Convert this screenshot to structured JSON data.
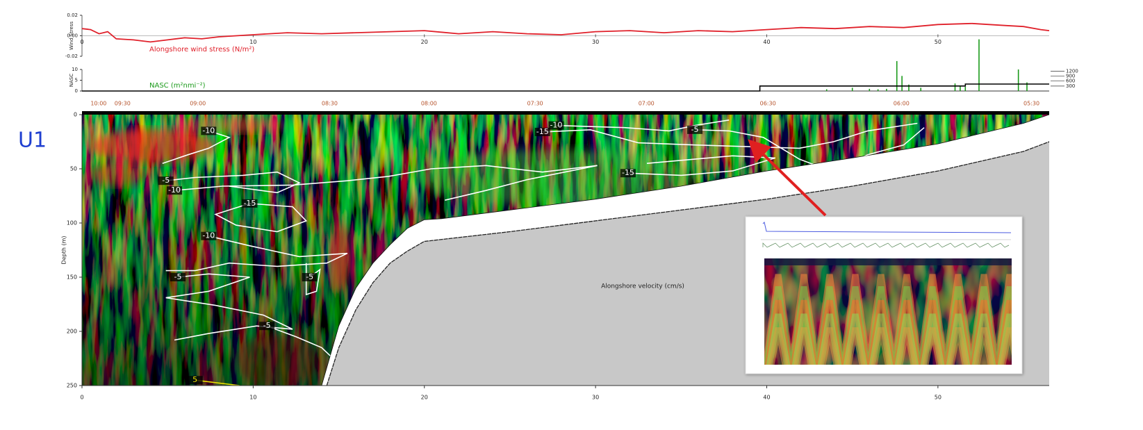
{
  "panel_label": "U1",
  "chart_data": [
    {
      "type": "line",
      "y_label": "Wind Stress",
      "annotation": "Alongshore wind stress (N/m²)",
      "color": "#e0202a",
      "x": [
        0,
        0.5,
        1,
        1.5,
        2,
        3,
        4,
        5,
        6,
        7,
        8,
        9,
        10,
        12,
        14,
        16,
        18,
        20,
        22,
        24,
        26,
        28,
        30,
        32,
        34,
        36,
        38,
        40,
        42,
        44,
        46,
        48,
        50,
        52,
        54,
        55,
        56,
        56.5
      ],
      "values": [
        0.007,
        0.006,
        0.002,
        0.004,
        -0.003,
        -0.004,
        -0.006,
        -0.004,
        -0.002,
        -0.003,
        -0.001,
        0,
        0.001,
        0.003,
        0.002,
        0.003,
        0.004,
        0.005,
        0.002,
        0.004,
        0.002,
        0.001,
        0.004,
        0.005,
        0.003,
        0.005,
        0.004,
        0.006,
        0.008,
        0.007,
        0.009,
        0.008,
        0.011,
        0.012,
        0.01,
        0.009,
        0.006,
        0.005
      ],
      "xlim": [
        0,
        56.5
      ],
      "ylim": [
        -0.02,
        0.02
      ],
      "xticks": [
        0,
        10,
        20,
        30,
        40,
        50
      ],
      "yticks": [
        {
          "value": -0.02,
          "label": "-0.02"
        },
        {
          "value": 0,
          "label": "0.00"
        },
        {
          "value": 0.02,
          "label": "0.02"
        }
      ]
    },
    {
      "type": "nasc",
      "y_label": "NASC",
      "series": [
        {
          "name": "NASC (m²nmi⁻²)",
          "color": "#1a9a1a",
          "x": [
            43.5,
            45,
            46,
            46.5,
            47,
            47.6,
            47.9,
            48.3,
            49,
            51,
            51.3,
            51.6,
            52.4,
            54.7,
            55.2
          ],
          "values": [
            0.8,
            1.5,
            1,
            0.8,
            1,
            13.9,
            7,
            3,
            1.5,
            3.5,
            2.5,
            2,
            24,
            10,
            4
          ]
        }
      ],
      "step_color": "#000000",
      "step_x": [
        0,
        39.6,
        39.6,
        51.6,
        51.6,
        56.5
      ],
      "step_values": [
        0,
        0,
        300,
        300,
        420,
        420
      ],
      "xlim": [
        0,
        56.5
      ],
      "ylim": [
        0,
        10
      ],
      "yticks": [
        0,
        5,
        10
      ],
      "y2lim": [
        0,
        1300
      ],
      "y2ticks": [
        300,
        600,
        900,
        1200
      ],
      "time_color": "#b5522a",
      "time_ticks": [
        {
          "value": 0.5,
          "label": "10:00"
        },
        {
          "value": 1.9,
          "label": "09:30"
        },
        {
          "value": 6.3,
          "label": "09:00"
        },
        {
          "value": 14.0,
          "label": "08:30"
        },
        {
          "value": 19.8,
          "label": "08:00"
        },
        {
          "value": 26.0,
          "label": "07:30"
        },
        {
          "value": 32.5,
          "label": "07:00"
        },
        {
          "value": 39.6,
          "label": "06:30"
        },
        {
          "value": 47.4,
          "label": "06:00"
        },
        {
          "value": 55.0,
          "label": "05:30"
        }
      ]
    },
    {
      "type": "echogram",
      "y_label": "Depth (m)",
      "annotation": "Alongshore velocity (cm/s)",
      "xlim": [
        0,
        56.5
      ],
      "ylim": [
        0,
        250
      ],
      "xticks": [
        0,
        10,
        20,
        30,
        40,
        50
      ],
      "yticks": [
        0,
        50,
        100,
        150,
        200,
        250
      ],
      "echo_edge": {
        "x": [
          14,
          15,
          16,
          17,
          18,
          19,
          20,
          21,
          25,
          30,
          35,
          40,
          45,
          50,
          55,
          56.5
        ],
        "depth": [
          250,
          195,
          160,
          137,
          120,
          105,
          97,
          96,
          88,
          78,
          66,
          52,
          40,
          27,
          8,
          0
        ]
      },
      "seafloor": {
        "color": "#c8c8c8",
        "x": [
          14.3,
          15,
          16,
          17,
          18,
          19,
          20,
          25,
          30,
          35,
          40,
          45,
          50,
          55,
          56.5
        ],
        "depth": [
          250,
          215,
          180,
          155,
          137,
          126,
          117,
          108,
          98,
          88,
          78,
          66,
          52,
          34,
          25
        ]
      },
      "contours": [
        {
          "label": "-10",
          "color": "#ffffff",
          "x": [
            7.4,
            8.6,
            7.4,
            6.2,
            4.7
          ],
          "y": [
            15,
            21,
            31,
            37,
            45
          ]
        },
        {
          "label": "-15",
          "color": "#ffffff",
          "x": [
            26.9,
            29.7,
            32.5,
            35.8,
            41.9,
            43.9,
            45.9,
            48.8
          ],
          "y": [
            16,
            14,
            26,
            28,
            31,
            25,
            15,
            8
          ]
        },
        {
          "label": "-10",
          "color": "#ffffff",
          "x": [
            27.7,
            31.7,
            34.3,
            35.8,
            37.8
          ],
          "y": [
            10,
            12,
            15,
            10,
            5
          ]
        },
        {
          "label": "-5",
          "color": "#ffffff",
          "x": [
            35.8,
            37.8,
            39.8,
            41.9,
            43.9,
            45.9,
            48,
            49.2
          ],
          "y": [
            14,
            15,
            21,
            41,
            53,
            37,
            28,
            12
          ]
        },
        {
          "label": "-5",
          "color": "#ffffff",
          "x": [
            4.9,
            6.6,
            9.4,
            11.4,
            12.7,
            11.4,
            8.6
          ],
          "y": [
            61,
            58,
            56,
            53,
            63,
            72,
            66
          ]
        },
        {
          "label": "-10",
          "color": "#ffffff",
          "x": [
            5.4,
            8.2,
            12.3,
            15.5,
            17.9,
            20.4,
            23.6,
            26.9,
            30.1,
            26,
            23.6,
            21.2
          ],
          "y": [
            70,
            66,
            65,
            61,
            57,
            50,
            47,
            53,
            47,
            60,
            70,
            79
          ]
        },
        {
          "label": "-15",
          "color": "#ffffff",
          "x": [
            9.8,
            12.3,
            13.1,
            11.4,
            9,
            7.8,
            9.8
          ],
          "y": [
            82,
            85,
            98,
            108,
            102,
            92,
            82
          ]
        },
        {
          "label": "-15",
          "color": "#ffffff",
          "x": [
            31.9,
            35,
            38,
            40.5,
            38,
            33
          ],
          "y": [
            54,
            56,
            52,
            40,
            38,
            45
          ]
        },
        {
          "label": "-10",
          "color": "#ffffff",
          "x": [
            7.4,
            9.8,
            12.7,
            15.5,
            14.3,
            11.4,
            8.6,
            6.6,
            4.9
          ],
          "y": [
            112,
            121,
            131,
            128,
            137,
            140,
            137,
            144,
            144
          ]
        },
        {
          "label": "-5",
          "color": "#ffffff",
          "x": [
            5.6,
            7.4,
            9.8,
            7.4,
            4.9,
            7.8,
            10.6,
            12.3,
            10.2,
            7.4,
            5.4
          ],
          "y": [
            150,
            147,
            150,
            163,
            169,
            176,
            185,
            198,
            195,
            202,
            208
          ]
        },
        {
          "label": "-5",
          "color": "#ffffff",
          "x": [
            10.8,
            12.5,
            14,
            15
          ],
          "y": [
            195,
            205,
            215,
            230
          ]
        },
        {
          "label": "-5",
          "color": "#ffffff",
          "x": [
            13.3,
            13.9,
            13.7,
            13.1,
            13.1
          ],
          "y": [
            150,
            143,
            163,
            166,
            137
          ]
        },
        {
          "label": "5",
          "color": "#e8e000",
          "x": [
            6.6,
            9.2
          ],
          "y": [
            245,
            250
          ]
        }
      ]
    }
  ]
}
